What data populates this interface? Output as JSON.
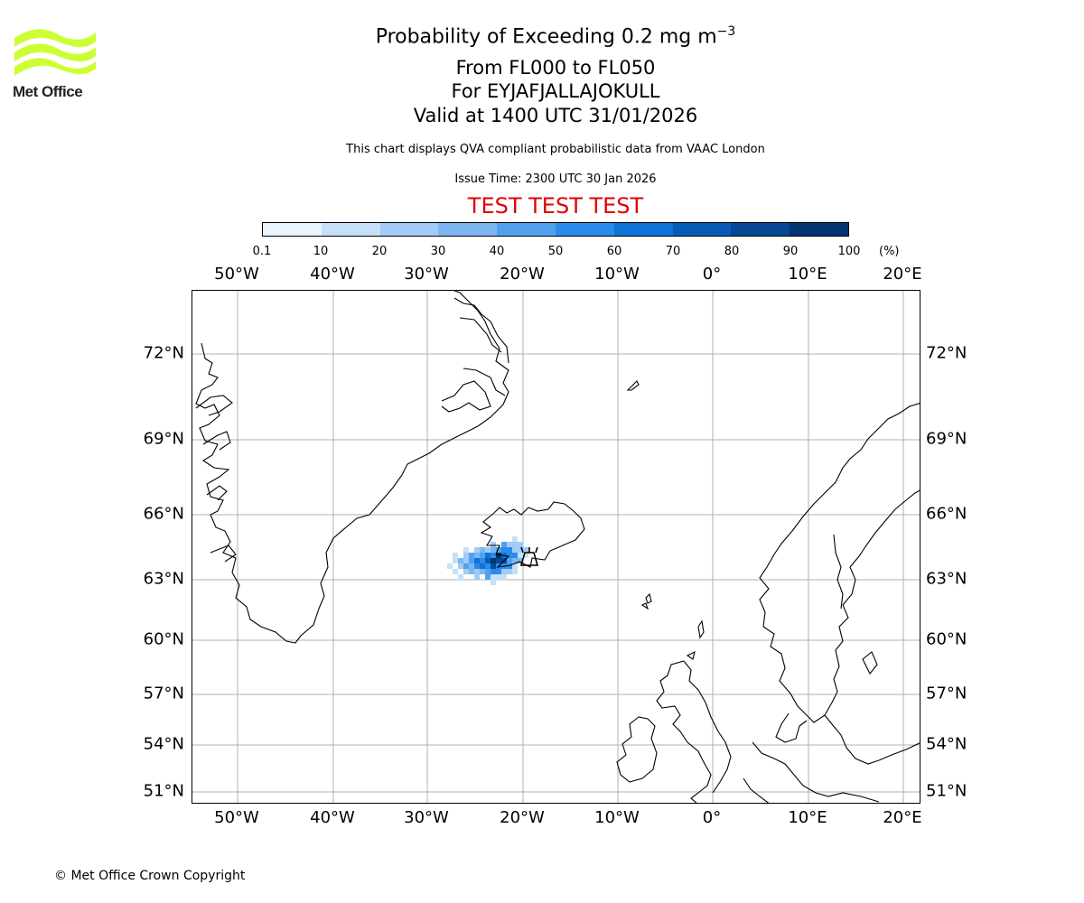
{
  "logo": {
    "text": "Met Office",
    "color": "#ccff33"
  },
  "title": {
    "main_prefix": "Probability of Exceeding 0.2 mg m",
    "main_exponent": "−3",
    "level": "From FL000 to FL050",
    "volcano": "For EYJAFJALLAJOKULL",
    "valid": "Valid at 1400 UTC 31/01/2026"
  },
  "subtitle": "This chart displays QVA compliant probabilistic data from VAAC London",
  "issue_time": "Issue Time: 2300 UTC 30 Jan 2026",
  "test_banner": "TEST TEST TEST",
  "test_color": "#e10000",
  "colorbar": {
    "ticks": [
      "0.1",
      "10",
      "20",
      "30",
      "40",
      "50",
      "60",
      "70",
      "80",
      "90",
      "100"
    ],
    "unit": "(%)",
    "colors": [
      "#eaf4fd",
      "#c6e0f9",
      "#a2cbf5",
      "#7cb6f1",
      "#52a1ee",
      "#2b8beb",
      "#0f72d8",
      "#075cb8",
      "#044896",
      "#023470",
      "#012550"
    ]
  },
  "axes": {
    "lon_labels": [
      "50°W",
      "40°W",
      "30°W",
      "20°W",
      "10°W",
      "0°",
      "10°E",
      "20°E"
    ],
    "lat_labels": [
      "72°N",
      "69°N",
      "66°N",
      "63°N",
      "60°N",
      "57°N",
      "54°N",
      "51°N"
    ]
  },
  "volcano_marker": "volcano-icon",
  "copyright": "© Met Office Crown Copyright"
}
